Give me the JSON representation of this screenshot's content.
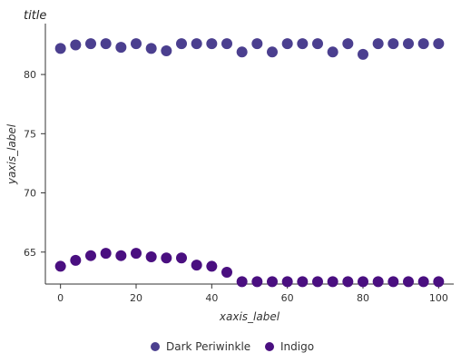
{
  "chart_data": {
    "type": "scatter",
    "title": "title",
    "xlabel": "xaxis_label",
    "ylabel": "yaxis_label",
    "xlim": [
      -4,
      104
    ],
    "ylim": [
      62.3,
      84.3
    ],
    "xticks": [
      0,
      20,
      40,
      60,
      80,
      100
    ],
    "yticks": [
      65,
      70,
      75,
      80
    ],
    "grid": false,
    "legend": "bottom-center",
    "series": [
      {
        "name": "Dark Periwinkle",
        "color": "#4B3F8F",
        "x": [
          0,
          4,
          8,
          12,
          16,
          20,
          24,
          28,
          32,
          36,
          40,
          44,
          48,
          52,
          56,
          60,
          64,
          68,
          72,
          76,
          80,
          84,
          88,
          92,
          96,
          100
        ],
        "y": [
          82.2,
          82.5,
          82.6,
          82.6,
          82.3,
          82.6,
          82.2,
          82.0,
          82.6,
          82.6,
          82.6,
          82.6,
          81.9,
          82.6,
          81.9,
          82.6,
          82.6,
          82.6,
          81.9,
          82.6,
          81.7,
          82.6,
          82.6,
          82.6,
          82.6,
          82.6
        ]
      },
      {
        "name": "Indigo",
        "color": "#4A0F80",
        "x": [
          0,
          4,
          8,
          12,
          16,
          20,
          24,
          28,
          32,
          36,
          40,
          44,
          48,
          52,
          56,
          60,
          64,
          68,
          72,
          76,
          80,
          84,
          88,
          92,
          96,
          100
        ],
        "y": [
          63.8,
          64.3,
          64.7,
          64.9,
          64.7,
          64.9,
          64.6,
          64.5,
          64.5,
          63.9,
          63.8,
          63.3,
          62.5,
          62.5,
          62.5,
          62.5,
          62.5,
          62.5,
          62.5,
          62.5,
          62.5,
          62.5,
          62.5,
          62.5,
          62.5,
          62.5
        ]
      }
    ]
  }
}
